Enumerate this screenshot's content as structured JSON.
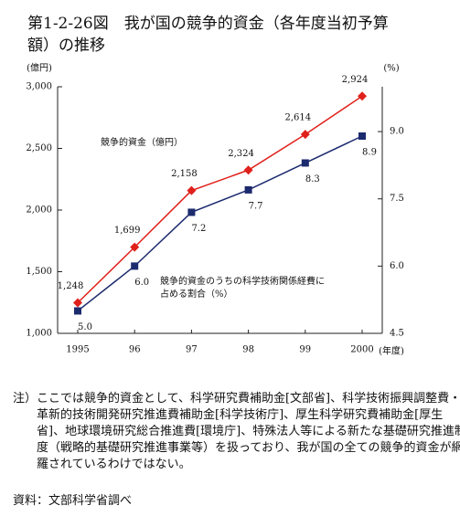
{
  "title": "第1-2-26図　我が国の競争的資金（各年度当初予算額）の推移",
  "chart_data": {
    "type": "line",
    "y_label": "(億円)",
    "y2_label": "(%)",
    "x_label": "(年度)",
    "categories": [
      "1995",
      "96",
      "97",
      "98",
      "99",
      "2000"
    ],
    "ylim": [
      1000,
      3000
    ],
    "yticks": [
      {
        "value": 1000,
        "label": "1,000"
      },
      {
        "value": 1500,
        "label": "1,500"
      },
      {
        "value": 2000,
        "label": "2,000"
      },
      {
        "value": 2500,
        "label": "2,500"
      },
      {
        "value": 3000,
        "label": "3,000"
      }
    ],
    "y2lim": [
      4.5,
      10.0
    ],
    "y2ticks": [
      4.5,
      {
        "value": 6,
        "label": "6.0"
      },
      7.5,
      {
        "value": 9,
        "label": "9.0"
      }
    ],
    "series": [
      {
        "name": "競争的資金（億円）",
        "color": "#e0201b",
        "marker": "diamond",
        "values": [
          1248,
          1699,
          2158,
          2324,
          2614,
          2924
        ],
        "value_labels": [
          "1,248",
          "1,699",
          "2,158",
          "2,324",
          "2,614",
          "2,924"
        ]
      },
      {
        "name": "競争的資金のうちの科学技術関係経費に占める割合（%）",
        "color": "#1c2a6e",
        "marker": "square",
        "axis": "y2",
        "values": [
          5.0,
          6.0,
          7.2,
          7.7,
          8.3,
          8.9
        ],
        "value_labels": [
          "5.0",
          "6.0",
          "7.2",
          "7.7",
          "8.3",
          "8.9"
        ]
      }
    ]
  },
  "note": "注）ここでは競争的資金として、科学研究費補助金[文部省]、科学技術振興調整費・革新的技術開発研究推進費補助金[科学技術庁]、厚生科学研究費補助金[厚生省]、地球環境研究総合推進費[環境庁]、特殊法人等による新たな基礎研究推進制度（戦略的基礎研究推進事業等）を扱っており、我が国の全ての競争的資金が網羅されているわけではない。",
  "source": "資料：文部科学省調べ"
}
